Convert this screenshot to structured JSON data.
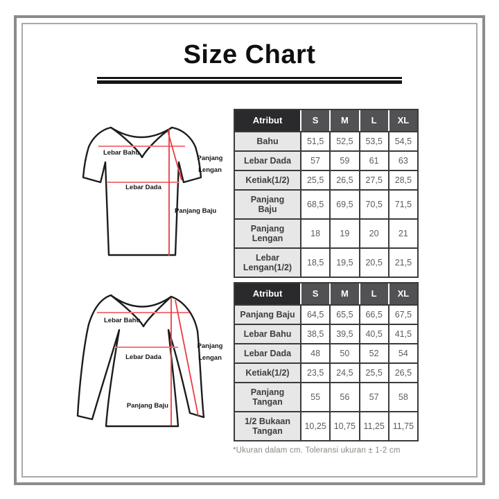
{
  "page": {
    "title": "Size Chart",
    "footnote": "*Ukuran dalam cm. Toleransi ukuran ± 1-2 cm"
  },
  "colors": {
    "accent_red_soft": "#f2787d",
    "accent_red_strong": "#ea3b41",
    "header_attr_bg": "#2a2a2c",
    "header_size_bg": "#525254",
    "attr_cell_bg": "#e7e7e7",
    "grid_border": "#3a3a3a",
    "shirt_outline": "#1c1c1c",
    "frame_outer": "#8b8b8b",
    "frame_inner": "#a9a9a9",
    "footnote_text": "#8d8781"
  },
  "diagrams": {
    "short_sleeve": {
      "name": "short-sleeve-top",
      "labels": {
        "lebar_bahu": "Lebar Bahu",
        "lebar_dada": "Lebar Dada",
        "panjang_lengan_line1": "Panjang",
        "panjang_lengan_line2": "Lengan",
        "panjang_baju": "Panjang Baju"
      }
    },
    "long_sleeve": {
      "name": "long-sleeve-top",
      "labels": {
        "lebar_bahu": "Lebar Bahu",
        "lebar_dada": "Lebar Dada",
        "panjang_lengan_line1": "Panjang",
        "panjang_lengan_line2": "Lengan",
        "panjang_baju": "Panjang Baju"
      }
    }
  },
  "tables": [
    {
      "columns": [
        "Atribut",
        "S",
        "M",
        "L",
        "XL"
      ],
      "rows": [
        {
          "label": "Bahu",
          "values": [
            "51,5",
            "52,5",
            "53,5",
            "54,5"
          ]
        },
        {
          "label": "Lebar Dada",
          "values": [
            "57",
            "59",
            "61",
            "63"
          ]
        },
        {
          "label": "Ketiak(1/2)",
          "values": [
            "25,5",
            "26,5",
            "27,5",
            "28,5"
          ]
        },
        {
          "label": "Panjang\nBaju",
          "values": [
            "68,5",
            "69,5",
            "70,5",
            "71,5"
          ]
        },
        {
          "label": "Panjang\nLengan",
          "values": [
            "18",
            "19",
            "20",
            "21"
          ]
        },
        {
          "label": "Lebar\nLengan(1/2)",
          "values": [
            "18,5",
            "19,5",
            "20,5",
            "21,5"
          ]
        }
      ]
    },
    {
      "columns": [
        "Atribut",
        "S",
        "M",
        "L",
        "XL"
      ],
      "rows": [
        {
          "label": "Panjang Baju",
          "values": [
            "64,5",
            "65,5",
            "66,5",
            "67,5"
          ]
        },
        {
          "label": "Lebar Bahu",
          "values": [
            "38,5",
            "39,5",
            "40,5",
            "41,5"
          ]
        },
        {
          "label": "Lebar Dada",
          "values": [
            "48",
            "50",
            "52",
            "54"
          ]
        },
        {
          "label": "Ketiak(1/2)",
          "values": [
            "23,5",
            "24,5",
            "25,5",
            "26,5"
          ]
        },
        {
          "label": "Panjang\nTangan",
          "values": [
            "55",
            "56",
            "57",
            "58"
          ]
        },
        {
          "label": "1/2 Bukaan\nTangan",
          "values": [
            "10,25",
            "10,75",
            "11,25",
            "11,75"
          ]
        }
      ]
    }
  ]
}
